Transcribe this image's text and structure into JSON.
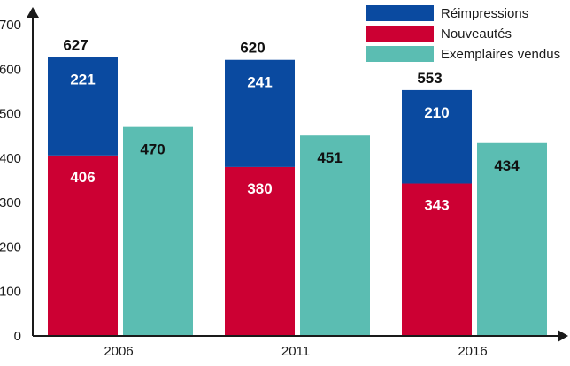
{
  "chart_data": {
    "type": "bar",
    "categories": [
      "2006",
      "2011",
      "2016"
    ],
    "series": [
      {
        "name": "Réimpressions",
        "values": [
          221,
          241,
          210
        ],
        "color": "#0a4aa0",
        "stack": "a"
      },
      {
        "name": "Nouveautés",
        "values": [
          406,
          380,
          343
        ],
        "color": "#cc0033",
        "stack": "a"
      },
      {
        "name": "Exemplaires vendus",
        "values": [
          470,
          451,
          434
        ],
        "color": "#5bbdb2",
        "stack": "b"
      }
    ],
    "totals": [
      627,
      620,
      553
    ],
    "yticks": [
      "0",
      "100",
      "200",
      "300",
      "400",
      "500",
      "600",
      "700"
    ],
    "ylim": [
      0,
      700
    ],
    "legend_position": "top-right",
    "grid": false
  }
}
